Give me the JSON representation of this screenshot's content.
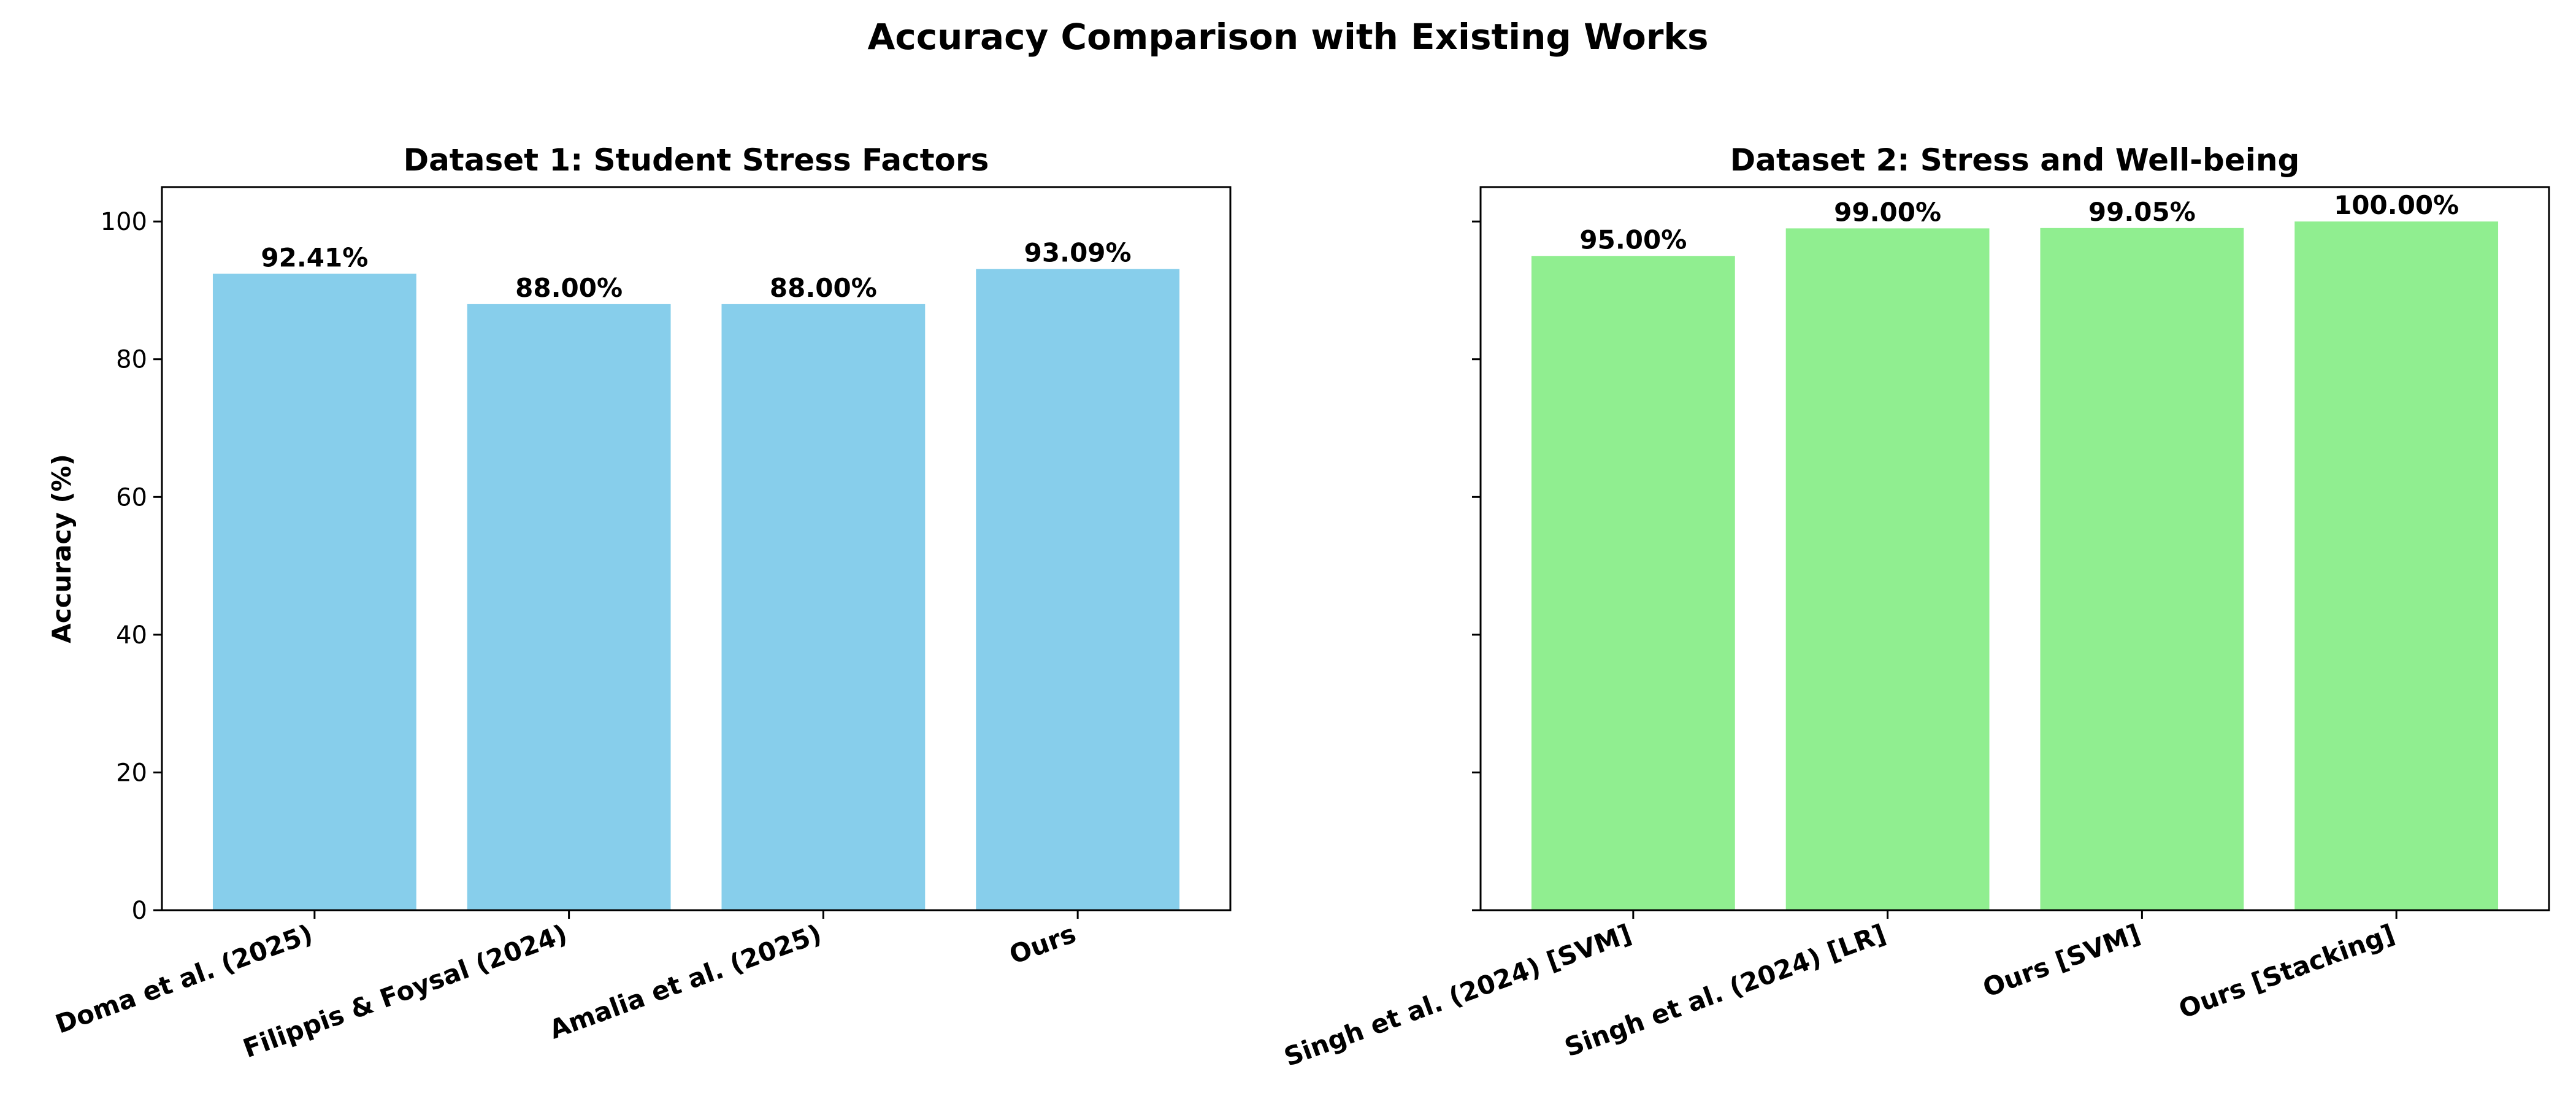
{
  "figure": {
    "title": "Accuracy Comparison with Existing Works"
  },
  "chart_data": [
    {
      "type": "bar",
      "title": "Dataset 1: Student Stress Factors",
      "xlabel": "",
      "ylabel": "Accuracy (%)",
      "ylim": [
        0,
        105
      ],
      "yticks": [
        0,
        20,
        40,
        60,
        80,
        100
      ],
      "grid": false,
      "categories": [
        "Doma et al. (2025)",
        "Filippis & Foysal (2024)",
        "Amalia et al. (2025)",
        "Ours"
      ],
      "values": [
        92.41,
        88.0,
        88.0,
        93.09
      ],
      "value_labels": [
        "92.41%",
        "88.00%",
        "88.00%",
        "93.09%"
      ],
      "color": "#87CEEB"
    },
    {
      "type": "bar",
      "title": "Dataset 2: Stress and Well-being",
      "xlabel": "",
      "ylabel": "",
      "ylim": [
        0,
        105
      ],
      "yticks": [
        0,
        20,
        40,
        60,
        80,
        100
      ],
      "show_ytick_labels": false,
      "grid": false,
      "categories": [
        "Singh et al. (2024) [SVM]",
        "Singh et al. (2024) [LR]",
        "Ours [SVM]",
        "Ours [Stacking]"
      ],
      "values": [
        95.0,
        99.0,
        99.05,
        100.0
      ],
      "value_labels": [
        "95.00%",
        "99.00%",
        "99.05%",
        "100.00%"
      ],
      "color": "#90EE90"
    }
  ]
}
